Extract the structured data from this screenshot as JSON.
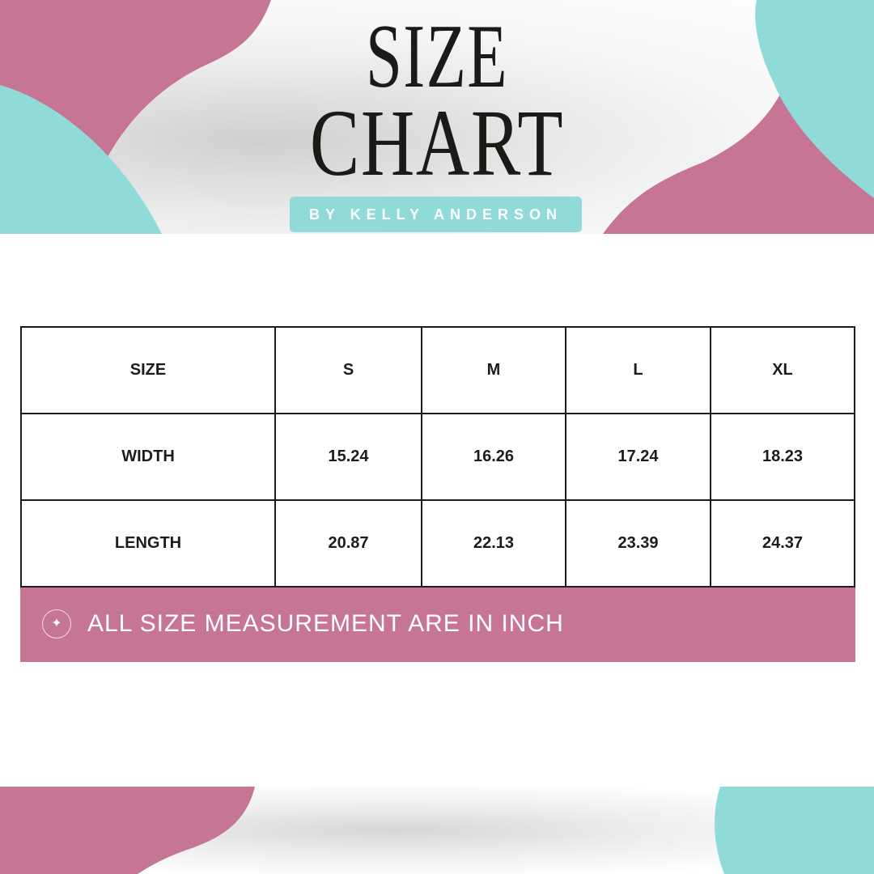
{
  "header": {
    "title_line1": "SIZE",
    "title_line2": "CHART",
    "byline": "BY KELLY ANDERSON"
  },
  "colors": {
    "pink": "#c67594",
    "teal": "#90dbd7",
    "text": "#1c1c1c"
  },
  "table": {
    "headers": [
      "SIZE",
      "S",
      "M",
      "L",
      "XL"
    ],
    "rows": [
      [
        "WIDTH",
        "15.24",
        "16.26",
        "17.24",
        "18.23"
      ],
      [
        "LENGTH",
        "20.87",
        "22.13",
        "23.39",
        "24.37"
      ]
    ]
  },
  "note": {
    "icon": "sparkle-icon",
    "text": "ALL SIZE MEASUREMENT ARE IN INCH"
  }
}
